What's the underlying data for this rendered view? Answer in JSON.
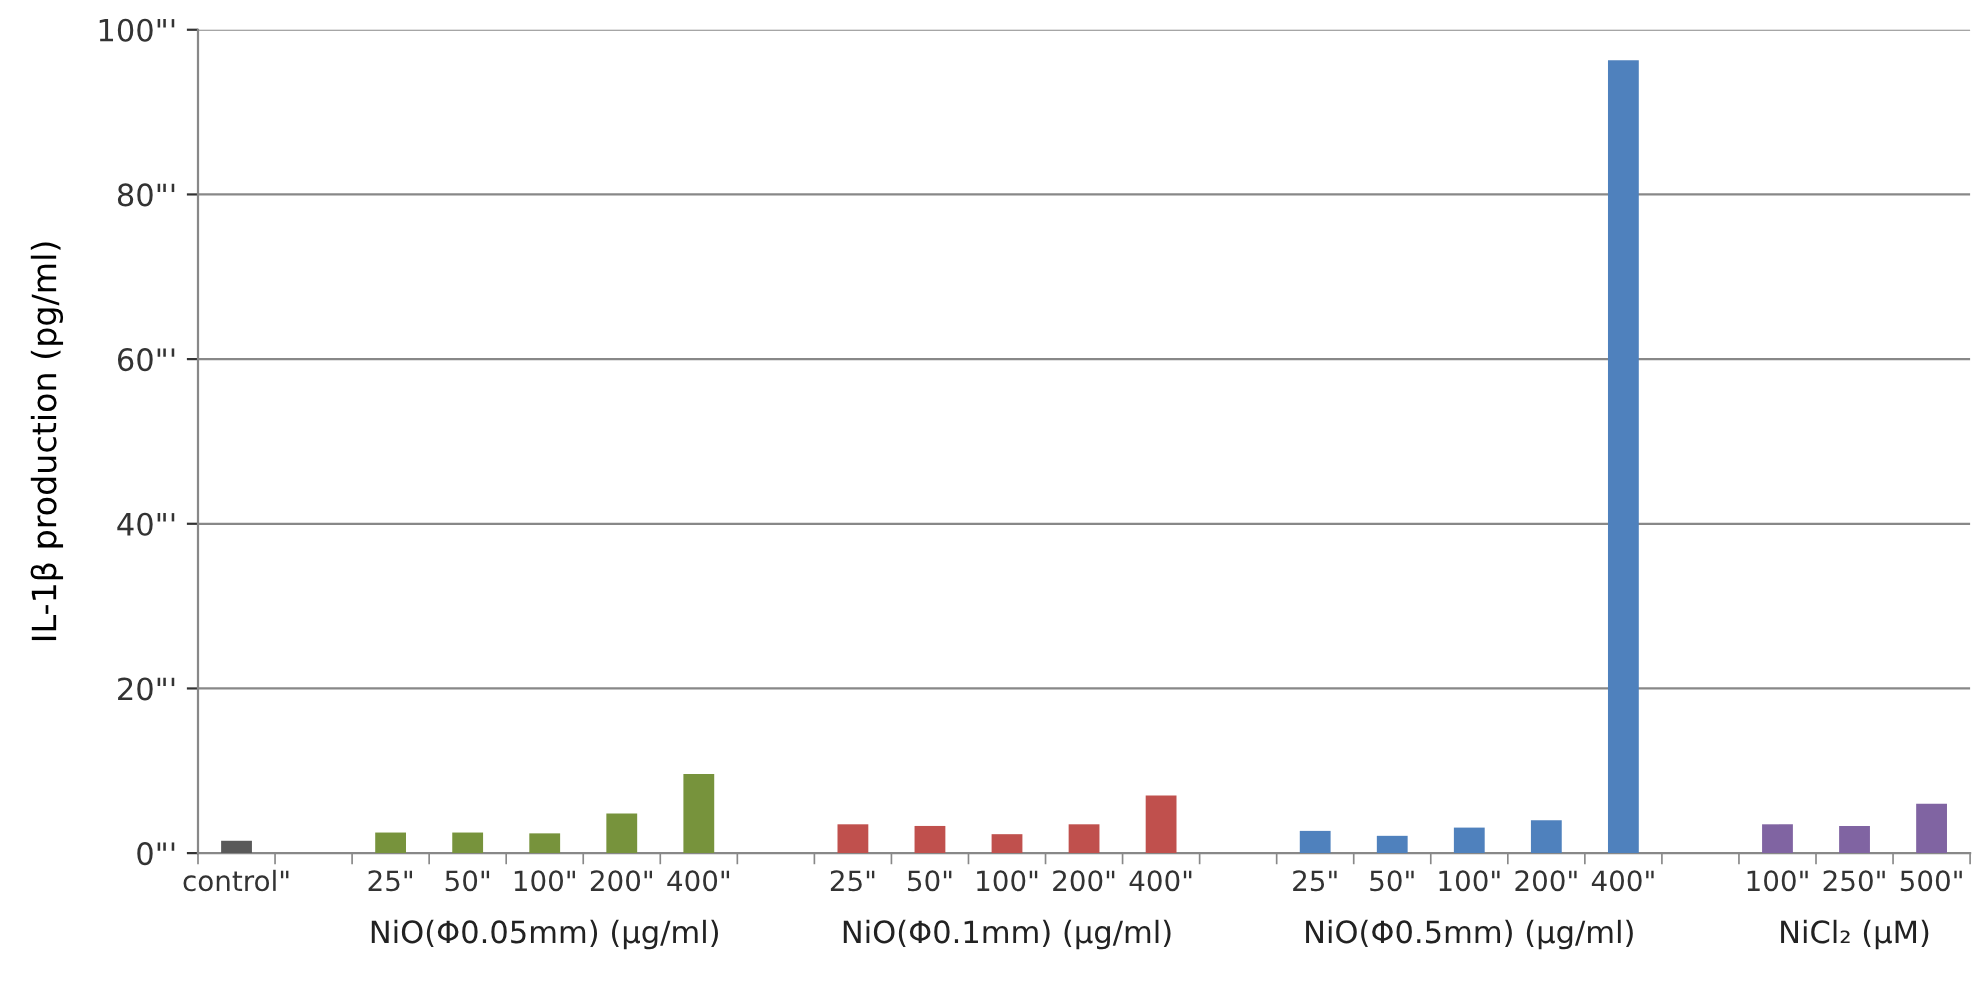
{
  "chart_data": {
    "type": "bar",
    "ylabel": "IL-1β production (pg/ml)",
    "categories": [
      "control\"",
      null,
      "25\"",
      "50\"",
      "100\"",
      "200\"",
      "400\"",
      null,
      "25\"",
      "50\"",
      "100\"",
      "200\"",
      "400\"",
      null,
      "25\"",
      "50\"",
      "100\"",
      "200\"",
      "400\"",
      null,
      "100\"",
      "250\"",
      "500\""
    ],
    "values": [
      1.5,
      null,
      2.5,
      2.5,
      2.4,
      4.8,
      9.6,
      null,
      3.5,
      3.3,
      2.3,
      3.5,
      7.0,
      null,
      2.7,
      2.1,
      3.1,
      4.0,
      96.3,
      null,
      3.5,
      3.3,
      6.0
    ],
    "colors": [
      "#595959",
      null,
      "#77933c",
      "#77933c",
      "#77933c",
      "#77933c",
      "#77933c",
      null,
      "#c0504d",
      "#c0504d",
      "#c0504d",
      "#c0504d",
      "#c0504d",
      null,
      "#4f81bd",
      "#4f81bd",
      "#4f81bd",
      "#4f81bd",
      "#4f81bd",
      null,
      "#8064a2",
      "#8064a2",
      "#8064a2"
    ],
    "ylim": [
      0,
      100
    ],
    "yticks": [
      {
        "value": 0,
        "label": "0\"'"
      },
      {
        "value": 20,
        "label": "20\"'"
      },
      {
        "value": 40,
        "label": "40\"'"
      },
      {
        "value": 60,
        "label": "60\"'"
      },
      {
        "value": 80,
        "label": "80\"'"
      },
      {
        "value": 100,
        "label": "100\"'"
      }
    ],
    "grid": "y",
    "legend": false,
    "annotations": [
      "NiO(Φ0.05mm) (μg/ml)",
      "NiO(Φ0.1mm) (μg/ml)",
      "NiO(Φ0.5mm) (μg/ml)",
      "NiCl₂ (μM)"
    ]
  }
}
